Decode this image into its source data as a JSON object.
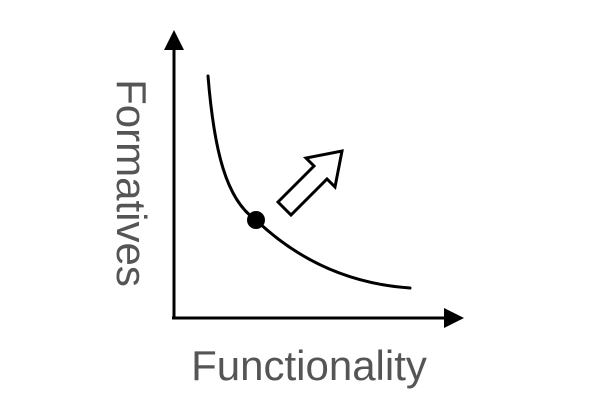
{
  "diagram": {
    "x_axis_label": "Functionality",
    "y_axis_label": "Formatives",
    "colors": {
      "line": "#000000",
      "label": "#555555",
      "arrow_fill": "#ffffff"
    },
    "icons": [
      "up-right-arrow-icon"
    ]
  }
}
